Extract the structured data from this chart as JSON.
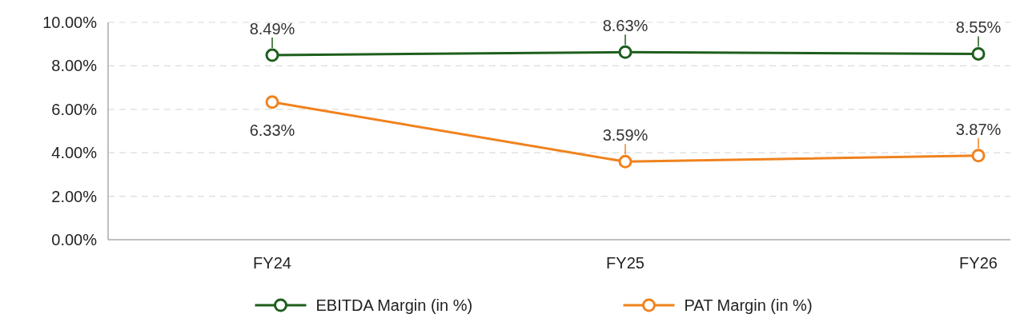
{
  "chart_data": {
    "type": "line",
    "categories": [
      "FY24",
      "FY25",
      "FY26"
    ],
    "series": [
      {
        "name": "EBITDA Margin (in %)",
        "color": "#1d5e1d",
        "values": [
          8.49,
          8.63,
          8.55
        ],
        "value_labels": [
          "8.49%",
          "8.63%",
          "8.55%"
        ]
      },
      {
        "name": "PAT Margin (in %)",
        "color": "#f0821e",
        "values": [
          6.33,
          3.59,
          3.87
        ],
        "value_labels": [
          "6.33%",
          "3.59%",
          "3.87%"
        ]
      }
    ],
    "ylim": [
      0,
      10
    ],
    "yticks": [
      {
        "value": 0,
        "label": "0.00%"
      },
      {
        "value": 2,
        "label": "2.00%"
      },
      {
        "value": 4,
        "label": "4.00%"
      },
      {
        "value": 6,
        "label": "6.00%"
      },
      {
        "value": 8,
        "label": "8.00%"
      },
      {
        "value": 10,
        "label": "10.00%"
      }
    ],
    "grid": "y",
    "legend": "bottom",
    "marker": "circle",
    "line_style": "solid"
  }
}
